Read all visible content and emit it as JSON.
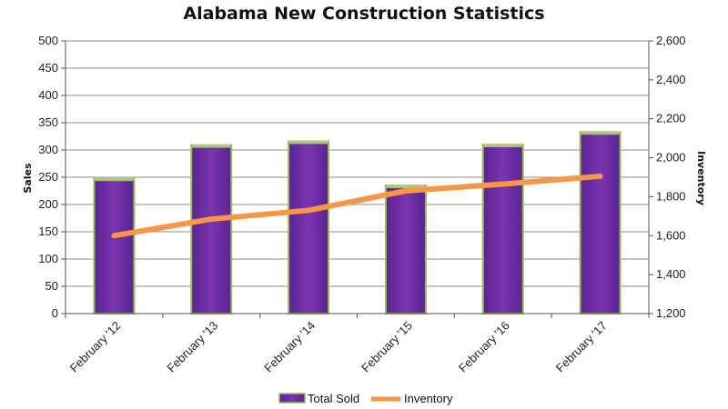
{
  "chart_data": {
    "type": "bar",
    "title": "Alabama  New Construction  Statistics",
    "categories": [
      "February '12",
      "February '13",
      "February '14",
      "February '15",
      "February '16",
      "February '17"
    ],
    "series": [
      {
        "name": "Total Sold",
        "type": "bar",
        "axis": "left",
        "values": [
          248,
          309,
          316,
          235,
          310,
          333
        ],
        "color": "#7030a0"
      },
      {
        "name": "Inventory",
        "type": "line",
        "axis": "right",
        "values": [
          1600,
          1685,
          1730,
          1830,
          1865,
          1905
        ],
        "color": "#f79646"
      }
    ],
    "ylabel": "Sales",
    "y2label": "Inventory",
    "ylim": [
      0,
      500
    ],
    "y2lim": [
      1200,
      2600
    ],
    "yticks": [
      "0",
      "50",
      "100",
      "150",
      "200",
      "250",
      "300",
      "350",
      "400",
      "450",
      "500"
    ],
    "y2ticks": [
      "1,200",
      "1,400",
      "1,600",
      "1,800",
      "2,000",
      "2,200",
      "2,400",
      "2,600"
    ],
    "grid": true,
    "legend": "bottom"
  }
}
